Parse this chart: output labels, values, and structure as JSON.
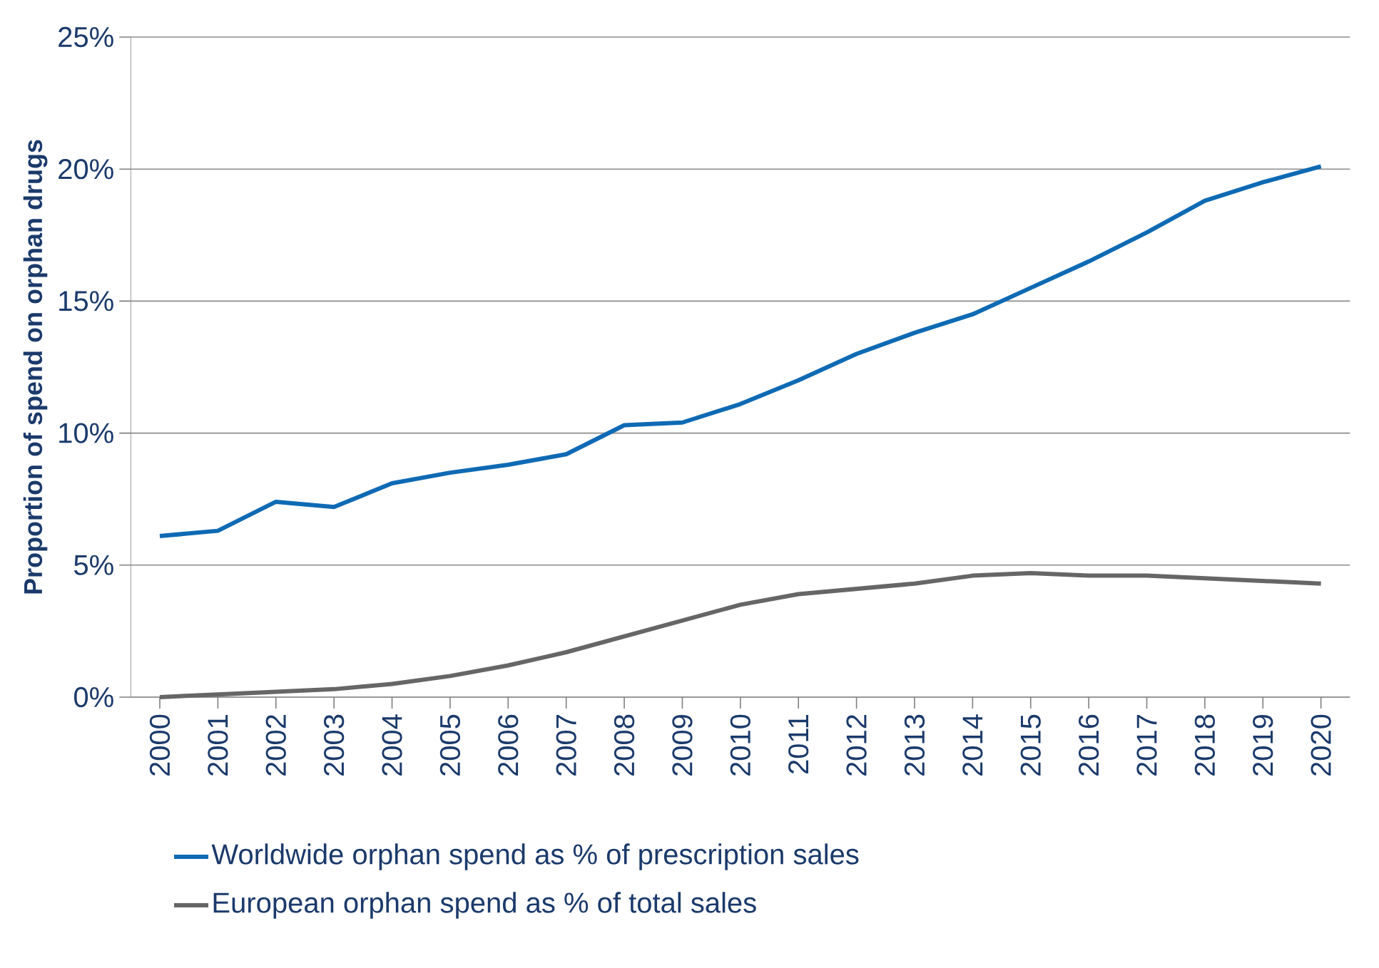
{
  "chart_data": {
    "type": "line",
    "ylabel": "Proportion of spend on orphan drugs",
    "categories": [
      "2000",
      "2001",
      "2002",
      "2003",
      "2004",
      "2005",
      "2006",
      "2007",
      "2008",
      "2009",
      "2010",
      "2011",
      "2012",
      "2013",
      "2014",
      "2015",
      "2016",
      "2017",
      "2018",
      "2019",
      "2020"
    ],
    "series": [
      {
        "name": "Worldwide orphan spend as % of prescription sales",
        "color": "#0f6ab4",
        "values": [
          6.1,
          6.3,
          7.4,
          7.2,
          8.1,
          8.5,
          8.8,
          9.2,
          10.3,
          10.4,
          11.1,
          12.0,
          13.0,
          13.8,
          14.5,
          15.5,
          16.5,
          17.6,
          18.8,
          19.5,
          20.1
        ]
      },
      {
        "name": "European orphan spend as % of total sales",
        "color": "#666666",
        "values": [
          0.0,
          0.1,
          0.2,
          0.3,
          0.5,
          0.8,
          1.2,
          1.7,
          2.3,
          2.9,
          3.5,
          3.9,
          4.1,
          4.3,
          4.6,
          4.7,
          4.6,
          4.6,
          4.5,
          4.4,
          4.3
        ]
      }
    ],
    "ylim": [
      0,
      25
    ],
    "yticks": [
      {
        "value": 0,
        "label": "0%"
      },
      {
        "value": 5,
        "label": "5%"
      },
      {
        "value": 10,
        "label": "10%"
      },
      {
        "value": 15,
        "label": "15%"
      },
      {
        "value": 20,
        "label": "20%"
      },
      {
        "value": 25,
        "label": "25%"
      }
    ],
    "grid": "y",
    "legend": "bottom",
    "marker": "none",
    "line_style": "solid"
  }
}
